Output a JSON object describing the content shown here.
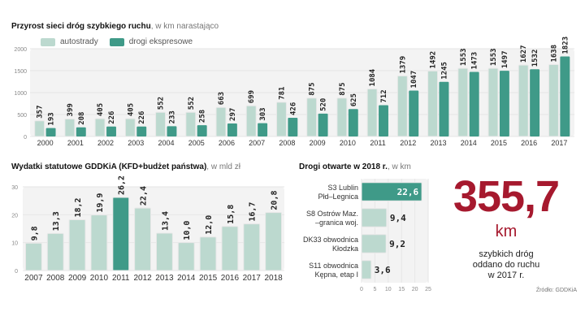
{
  "colors": {
    "light": "#bcd9cf",
    "dark": "#3f9a88",
    "highlight": "#a6192e",
    "panel": "#f3f3f3",
    "grid": "#e6e6e6"
  },
  "chart_data": [
    {
      "type": "bar",
      "title": "Przyrost sieci dróg szybkiego ruchu",
      "subtitle": ", w km narastająco",
      "xlabel": "",
      "ylabel": "",
      "ylim": [
        0,
        2000
      ],
      "yticks": [
        "0",
        "500",
        "1000",
        "1500",
        "2000"
      ],
      "grid": true,
      "legend": "top-left",
      "categories": [
        "2000",
        "2001",
        "2002",
        "2003",
        "2004",
        "2005",
        "2006",
        "2007",
        "2008",
        "2009",
        "2010",
        "2011",
        "2012",
        "2013",
        "2014",
        "2015",
        "2016",
        "2017"
      ],
      "series": [
        {
          "name": "autostrady",
          "values": [
            357,
            399,
            405,
            405,
            552,
            552,
            663,
            699,
            781,
            875,
            875,
            1084,
            1379,
            1492,
            1553,
            1553,
            1627,
            1638
          ]
        },
        {
          "name": "drogi ekspresowe",
          "values": [
            193,
            208,
            226,
            226,
            233,
            258,
            297,
            303,
            426,
            520,
            625,
            712,
            1047,
            1245,
            1473,
            1497,
            1532,
            1823
          ]
        }
      ]
    },
    {
      "type": "bar",
      "title": "Wydatki statutowe GDDKiA (KFD+budżet państwa)",
      "subtitle": ", w mld zł",
      "ylim": [
        0,
        30
      ],
      "yticks": [
        "0",
        "10",
        "20",
        "30"
      ],
      "grid": true,
      "categories": [
        "2007",
        "2008",
        "2009",
        "2010",
        "2011",
        "2012",
        "2013",
        "2014",
        "2015",
        "2016",
        "2017",
        "2018"
      ],
      "values": [
        9.8,
        13.3,
        18.2,
        19.9,
        26.2,
        22.4,
        13.4,
        10.0,
        12.0,
        15.8,
        16.7,
        20.8
      ],
      "labels": [
        "9,8",
        "13,3",
        "18,2",
        "19,9",
        "26,2",
        "22,4",
        "13,4",
        "10,0",
        "12,0",
        "15,8",
        "16,7",
        "20,8"
      ],
      "highlight_index": 4
    },
    {
      "type": "bar",
      "orientation": "horizontal",
      "title": "Drogi otwarte w 2018 r.",
      "subtitle": ", w km",
      "xlim": [
        0,
        25
      ],
      "xticks": [
        "0",
        "5",
        "10",
        "15",
        "20",
        "25"
      ],
      "categories": [
        [
          "S3 Lublin",
          "Płd–Legnica"
        ],
        [
          "S8 Ostrów Maz.",
          "–granica woj."
        ],
        [
          "DK33 obwodnica",
          "Kłodzka"
        ],
        [
          "S11 obwodnica",
          "Kępna, etap I"
        ]
      ],
      "values": [
        22.6,
        9.4,
        9.2,
        3.6
      ],
      "labels": [
        "22,6",
        "9,4",
        "9,2",
        "3,6"
      ],
      "highlight_index": 0
    }
  ],
  "stat": {
    "value": "355,7",
    "unit": "km",
    "line1": "szybkich dróg",
    "line2": "oddano do ruchu",
    "line3": "w 2017 r."
  },
  "source": "Źródło: GDDKiA"
}
